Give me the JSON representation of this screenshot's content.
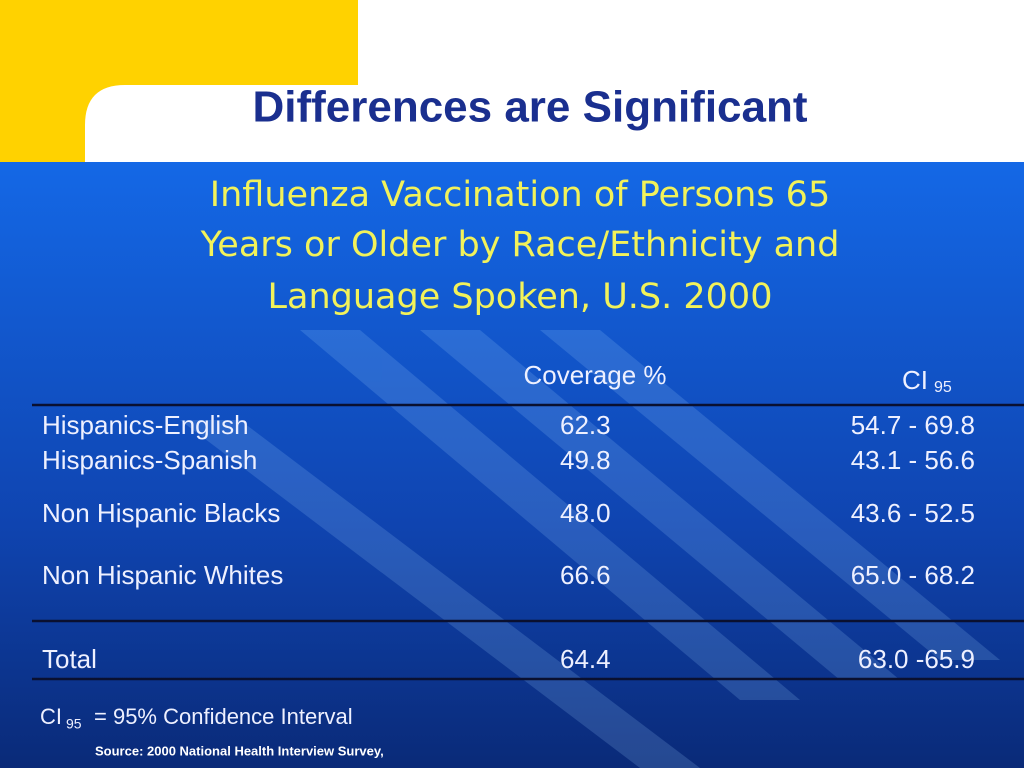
{
  "header": {
    "title": "Differences are Significant"
  },
  "table_title": [
    "Influenza Vaccination of Persons  65",
    "Years or Older by Race/Ethnicity and",
    "Language Spoken, U.S. 2000"
  ],
  "table": {
    "columns": [
      "Coverage %",
      "CI",
      "95"
    ],
    "rows": [
      [
        "Hispanics-English",
        "62.3",
        "54.7 - 69.8"
      ],
      [
        "Hispanics-Spanish",
        "49.8",
        "43.1 - 56.6"
      ],
      [
        "Non Hispanic Blacks",
        "48.0",
        "43.6 - 52.5"
      ],
      [
        "Non Hispanic Whites",
        "66.6",
        "65.0 - 68.2"
      ]
    ],
    "total": [
      "Total",
      "64.4",
      "63.0 -65.9"
    ]
  },
  "footnote": {
    "abbr": "CI",
    "sub": "95",
    "text": "= 95% Confidence Interval"
  },
  "source": "Source: 2000 National Health Interview Survey,"
}
